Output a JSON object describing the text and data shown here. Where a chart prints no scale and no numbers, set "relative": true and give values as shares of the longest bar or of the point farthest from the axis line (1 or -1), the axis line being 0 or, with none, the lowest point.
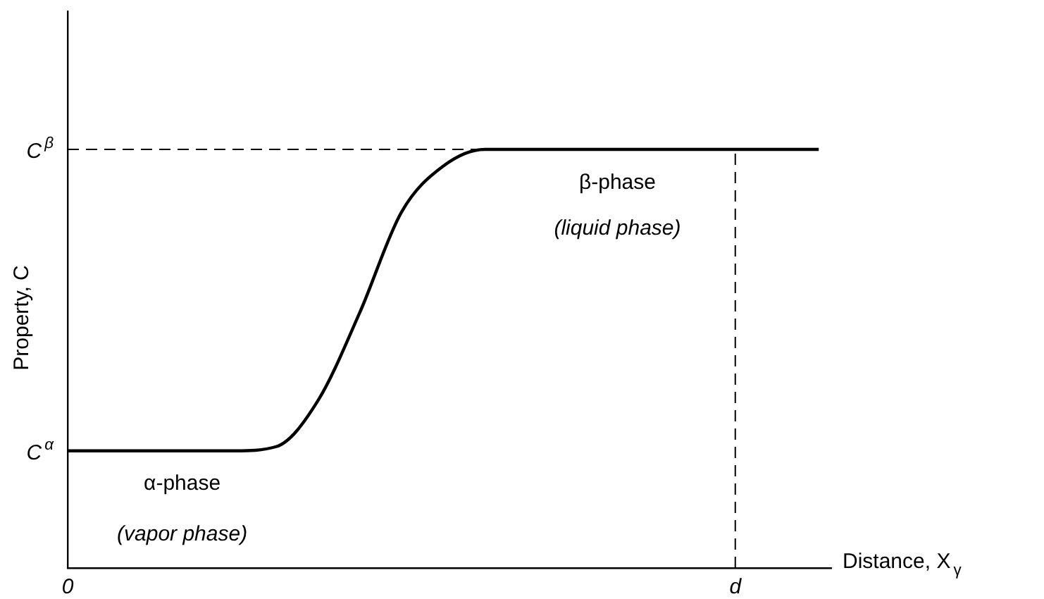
{
  "chart_data": {
    "type": "line",
    "relative": true,
    "xlabel": "Distance, X$_{γ}$",
    "ylabel": "Property, C",
    "categories": [
      "0",
      null,
      null,
      null,
      null,
      null,
      null,
      null,
      null,
      null,
      null,
      null,
      null,
      null,
      null,
      null,
      "d",
      null,
      null
    ],
    "values": [
      0.28,
      0.28,
      0.28,
      0.28,
      0.28,
      0.29,
      0.4,
      0.61,
      0.85,
      0.96,
      1.0,
      1.0,
      1.0,
      1.0,
      1.0,
      1.0,
      1.0,
      1.0,
      1.0
    ],
    "color": "#000000",
    "line_style": "solid",
    "marker": "none",
    "grid": false,
    "legend": false,
    "ref_lines": [
      {
        "axis": "y",
        "value": 1,
        "label": "C$^{β}$",
        "line_style": "dashed"
      },
      {
        "axis": "x",
        "value": "d",
        "line_style": "dashed"
      }
    ],
    "annotations": [
      "C$^{α}$",
      "α-phase",
      "(vapor phase)",
      "β-phase",
      "(liquid phase)"
    ]
  }
}
